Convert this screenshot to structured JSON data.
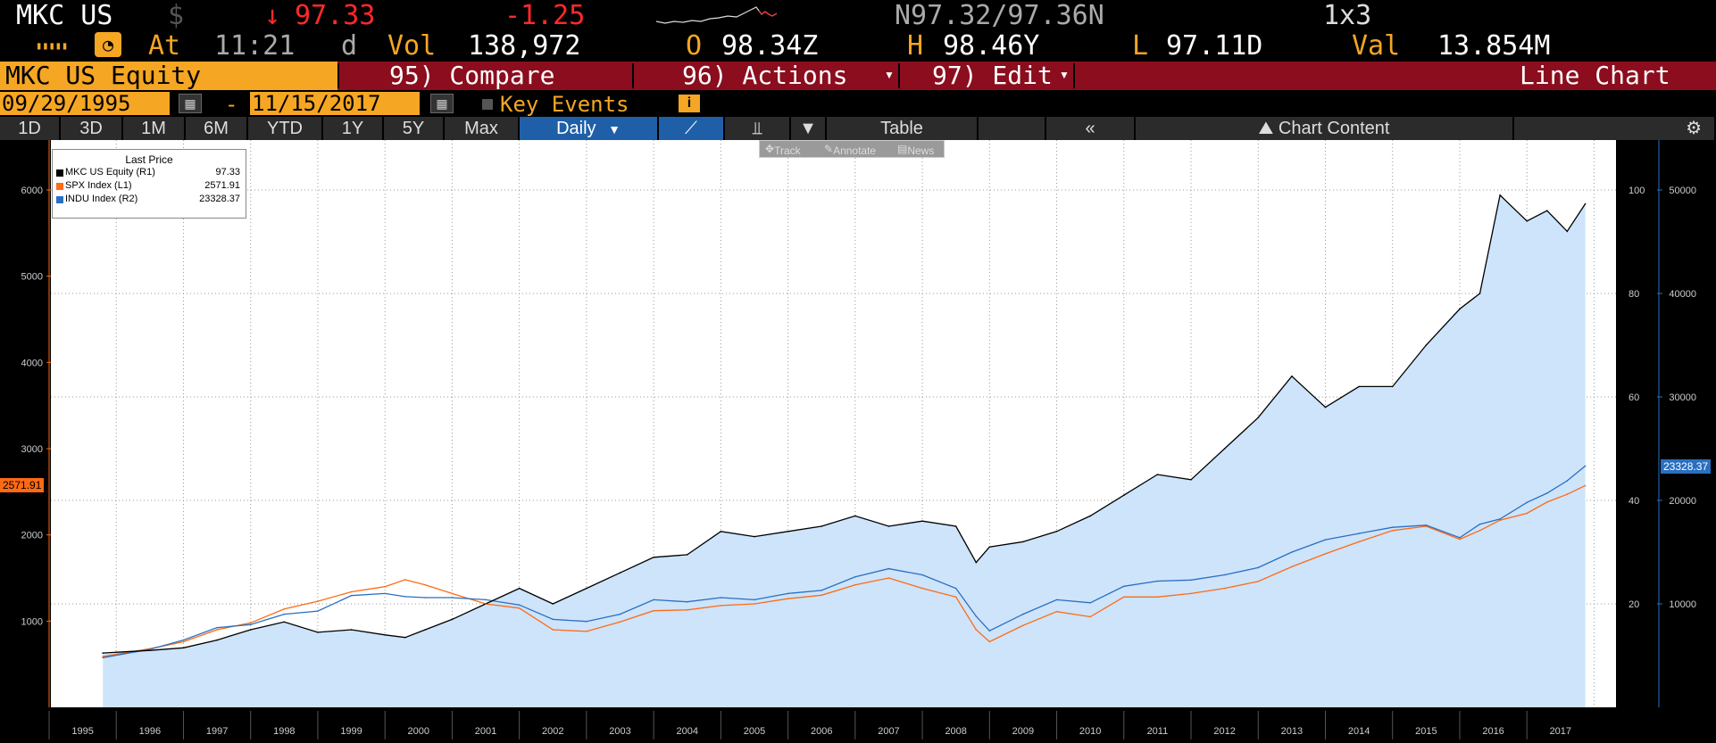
{
  "ticker": {
    "symbol": "MKC US",
    "currency": "$",
    "arrow": "↓",
    "last": "97.33",
    "change": "-1.25",
    "bid_ask": "N97.32/97.36N",
    "size": "1x3",
    "time_label": "At",
    "time": "11:21",
    "time_suffix": "d",
    "vol_label": "Vol",
    "vol": "138,972",
    "open_label": "O",
    "open": "98.34Z",
    "high_label": "H",
    "high": "98.46Y",
    "low_label": "L",
    "low": "97.11D",
    "val_label": "Val",
    "val": "13.854M"
  },
  "cmdbar": {
    "security": "MKC US Equity",
    "compare": "95) Compare",
    "actions": "96) Actions",
    "edit": "97) Edit",
    "chart_type": "Line Chart"
  },
  "dates": {
    "start": "09/29/1995",
    "dash": "-",
    "end": "11/15/2017",
    "key_events": "Key Events"
  },
  "toolbar": {
    "ranges": [
      "1D",
      "3D",
      "1M",
      "6M",
      "YTD",
      "1Y",
      "5Y",
      "Max"
    ],
    "frequency": "Daily",
    "table": "Table",
    "chart_content": "Chart Content",
    "track": "Track",
    "annotate": "Annotate",
    "news": "News"
  },
  "legend": {
    "title": "Last Price",
    "rows": [
      {
        "name": "MKC US Equity  (R1)",
        "value": "97.33",
        "color": "#000000"
      },
      {
        "name": "SPX Index  (L1)",
        "value": "2571.91",
        "color": "#ff6a13"
      },
      {
        "name": "INDU Index  (R2)",
        "value": "23328.37",
        "color": "#2a6fc0"
      }
    ]
  },
  "chart_data": {
    "type": "line",
    "x_years": [
      "1995",
      "1996",
      "1997",
      "1998",
      "1999",
      "2000",
      "2001",
      "2002",
      "2003",
      "2004",
      "2005",
      "2006",
      "2007",
      "2008",
      "2009",
      "2010",
      "2011",
      "2012",
      "2013",
      "2014",
      "2015",
      "2016",
      "2017"
    ],
    "left_axis": {
      "ticks": [
        1000,
        2000,
        3000,
        4000,
        5000,
        6000
      ],
      "range": [
        0,
        6000
      ],
      "series": "SPX Index"
    },
    "right_axis_1": {
      "ticks": [
        20,
        40,
        60,
        80,
        100
      ],
      "range": [
        0,
        100
      ],
      "series": "MKC US Equity"
    },
    "right_axis_2": {
      "ticks": [
        10000,
        20000,
        30000,
        40000,
        50000
      ],
      "range": [
        0,
        50000
      ],
      "series": "INDU Index"
    },
    "tags": {
      "spx": "2571.91",
      "mkc_top": "100",
      "mkc_last": "97.33",
      "indu": "23328.37"
    },
    "series": [
      {
        "name": "MKC US Equity",
        "axis": "R1",
        "color": "#000000",
        "x": [
          1995.8,
          1996.5,
          1997.0,
          1997.5,
          1998.0,
          1998.5,
          1999.0,
          1999.5,
          2000.0,
          2000.3,
          2000.6,
          2001.0,
          2001.5,
          2002.0,
          2002.5,
          2003.0,
          2003.5,
          2004.0,
          2004.5,
          2005.0,
          2005.5,
          2006.0,
          2006.5,
          2007.0,
          2007.5,
          2008.0,
          2008.5,
          2008.8,
          2009.0,
          2009.5,
          2010.0,
          2010.5,
          2011.0,
          2011.5,
          2012.0,
          2012.5,
          2013.0,
          2013.5,
          2014.0,
          2014.5,
          2015.0,
          2015.5,
          2016.0,
          2016.3,
          2016.6,
          2017.0,
          2017.3,
          2017.6,
          2017.87
        ],
        "values": [
          10.5,
          11,
          11.5,
          13,
          15,
          16.5,
          14.5,
          15,
          14,
          13.5,
          15,
          17,
          20,
          23,
          20,
          23,
          26,
          29,
          29.5,
          34,
          33,
          34,
          35,
          37,
          35,
          36,
          35,
          28,
          31,
          32,
          34,
          37,
          41,
          45,
          44,
          50,
          56,
          64,
          58,
          62,
          62,
          70,
          77,
          80,
          99,
          94,
          96,
          92,
          97.33
        ]
      },
      {
        "name": "SPX Index",
        "axis": "L1",
        "color": "#ff6a13",
        "x": [
          1995.8,
          1996.5,
          1997.0,
          1997.5,
          1998.0,
          1998.5,
          1999.0,
          1999.5,
          2000.0,
          2000.3,
          2000.6,
          2001.0,
          2001.5,
          2002.0,
          2002.5,
          2003.0,
          2003.5,
          2004.0,
          2004.5,
          2005.0,
          2005.5,
          2006.0,
          2006.5,
          2007.0,
          2007.5,
          2008.0,
          2008.5,
          2008.8,
          2009.0,
          2009.5,
          2010.0,
          2010.5,
          2011.0,
          2011.5,
          2012.0,
          2012.5,
          2013.0,
          2013.5,
          2014.0,
          2014.5,
          2015.0,
          2015.5,
          2016.0,
          2016.3,
          2016.6,
          2017.0,
          2017.3,
          2017.6,
          2017.87
        ],
        "values": [
          590,
          680,
          760,
          900,
          980,
          1140,
          1230,
          1340,
          1400,
          1480,
          1420,
          1320,
          1200,
          1150,
          900,
          880,
          990,
          1120,
          1130,
          1180,
          1200,
          1260,
          1300,
          1420,
          1500,
          1380,
          1280,
          900,
          760,
          950,
          1110,
          1050,
          1280,
          1280,
          1320,
          1380,
          1460,
          1630,
          1780,
          1920,
          2050,
          2100,
          1950,
          2050,
          2170,
          2250,
          2380,
          2470,
          2571.91
        ]
      },
      {
        "name": "INDU Index",
        "axis": "R2",
        "color": "#2a6fc0",
        "x": [
          1995.8,
          1996.5,
          1997.0,
          1997.5,
          1998.0,
          1998.5,
          1999.0,
          1999.5,
          2000.0,
          2000.3,
          2000.6,
          2001.0,
          2001.5,
          2002.0,
          2002.5,
          2003.0,
          2003.5,
          2004.0,
          2004.5,
          2005.0,
          2005.5,
          2006.0,
          2006.5,
          2007.0,
          2007.5,
          2008.0,
          2008.5,
          2008.8,
          2009.0,
          2009.5,
          2010.0,
          2010.5,
          2011.0,
          2011.5,
          2012.0,
          2012.5,
          2013.0,
          2013.5,
          2014.0,
          2014.5,
          2015.0,
          2015.5,
          2016.0,
          2016.3,
          2016.6,
          2017.0,
          2017.3,
          2017.6,
          2017.87
        ],
        "values": [
          4800,
          5600,
          6500,
          7700,
          8000,
          9000,
          9300,
          10800,
          11000,
          10700,
          10600,
          10600,
          10400,
          9900,
          8500,
          8300,
          9000,
          10400,
          10200,
          10600,
          10400,
          11000,
          11300,
          12600,
          13400,
          12800,
          11500,
          8800,
          7400,
          9000,
          10400,
          10100,
          11700,
          12200,
          12300,
          12800,
          13500,
          15000,
          16200,
          16800,
          17400,
          17600,
          16400,
          17700,
          18200,
          19800,
          20700,
          21900,
          23328.37
        ]
      }
    ]
  }
}
